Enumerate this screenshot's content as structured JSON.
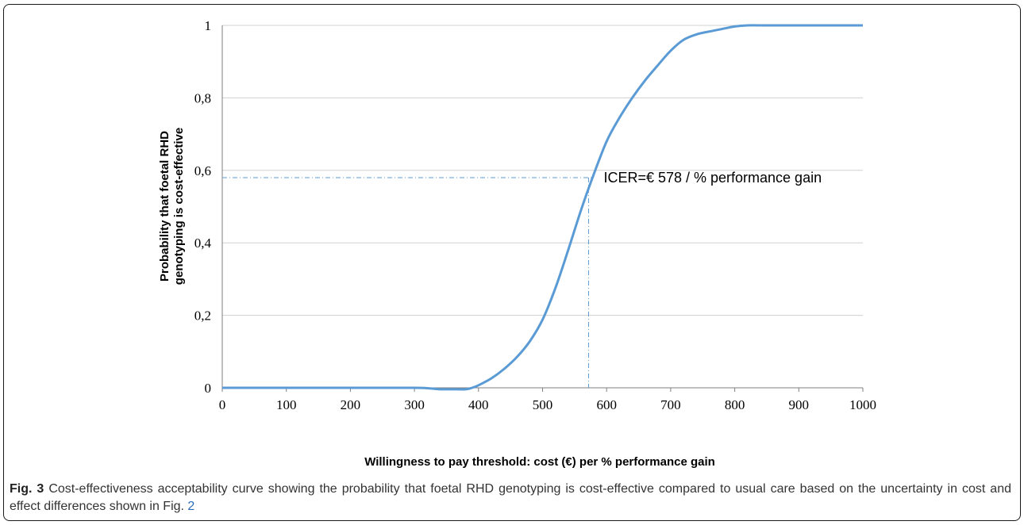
{
  "chart_data": {
    "type": "line",
    "xlabel": "Willingness to pay threshold: cost (€) per % performance gain",
    "ylabel": [
      "Probability  that foetal RHD",
      "genotyping is cost-effective"
    ],
    "xlim": [
      0,
      1000
    ],
    "ylim": [
      0,
      1
    ],
    "x_ticks": [
      0,
      100,
      200,
      300,
      400,
      500,
      600,
      700,
      800,
      900,
      1000
    ],
    "x_tick_labels": [
      "0",
      "100",
      "200",
      "300",
      "400",
      "500",
      "600",
      "700",
      "800",
      "900",
      "1000"
    ],
    "y_ticks": [
      0,
      0.2,
      0.4,
      0.6,
      0.8,
      1
    ],
    "y_tick_labels": [
      "0",
      "0,2",
      "0,4",
      "0,6",
      "0,8",
      "1"
    ],
    "grid": "horizontal",
    "line_color": "#5b9bd5",
    "series": [
      {
        "x": [
          0,
          50,
          100,
          150,
          200,
          250,
          300,
          320,
          340,
          360,
          380,
          390,
          400,
          420,
          440,
          460,
          480,
          500,
          520,
          540,
          560,
          578,
          600,
          620,
          640,
          660,
          680,
          700,
          720,
          740,
          760,
          780,
          800,
          820,
          850,
          900,
          950,
          1000
        ],
        "y": [
          0,
          0,
          0,
          0,
          0,
          0,
          0,
          -0.001,
          -0.004,
          -0.004,
          -0.004,
          0,
          0.007,
          0.026,
          0.052,
          0.085,
          0.128,
          0.188,
          0.275,
          0.38,
          0.49,
          0.58,
          0.68,
          0.745,
          0.8,
          0.848,
          0.89,
          0.93,
          0.96,
          0.975,
          0.983,
          0.99,
          0.997,
          1,
          1,
          1,
          1,
          1
        ]
      }
    ],
    "annotation": {
      "text": "ICER=€ 578 / % performance gain",
      "x": 578,
      "y": 0.58
    }
  },
  "caption": {
    "label": "Fig. 3",
    "text_before_ref": " Cost-effectiveness acceptability curve showing the probability that foetal RHD genotyping is cost-effective compared to usual care based on the uncertainty in cost and effect differences shown in Fig. ",
    "ref": "2"
  },
  "colors": {
    "line": "#5b9bd5",
    "grid": "#d0d0d0",
    "axis": "#7f7f7f"
  }
}
